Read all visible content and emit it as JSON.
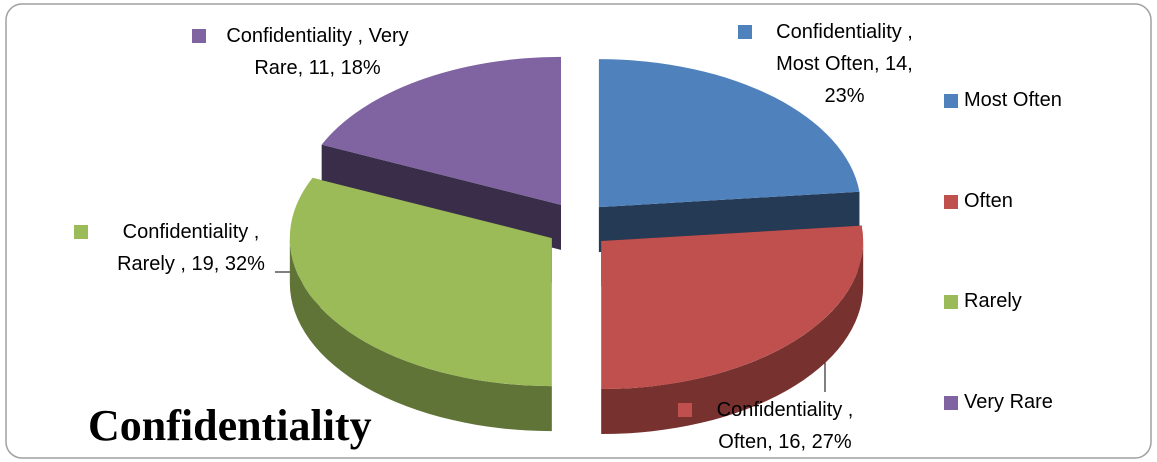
{
  "chart_data": {
    "type": "pie",
    "title": "Confidentiality",
    "series_name": "Confidentiality",
    "categories": [
      "Most Often",
      "Often",
      "Rarely",
      "Very Rare"
    ],
    "values": [
      14,
      16,
      19,
      11
    ],
    "value_labels": [
      "Confidentiality , Most Often, 14, 23%",
      "Confidentiality , Often, 16, 27%",
      "Confidentiality , Rarely , 19, 32%",
      "Confidentiality , Very Rare, 11, 18%"
    ],
    "colors": [
      "#4f81bd",
      "#c0504d",
      "#9bbb59",
      "#8064a2"
    ],
    "legend": "right"
  }
}
